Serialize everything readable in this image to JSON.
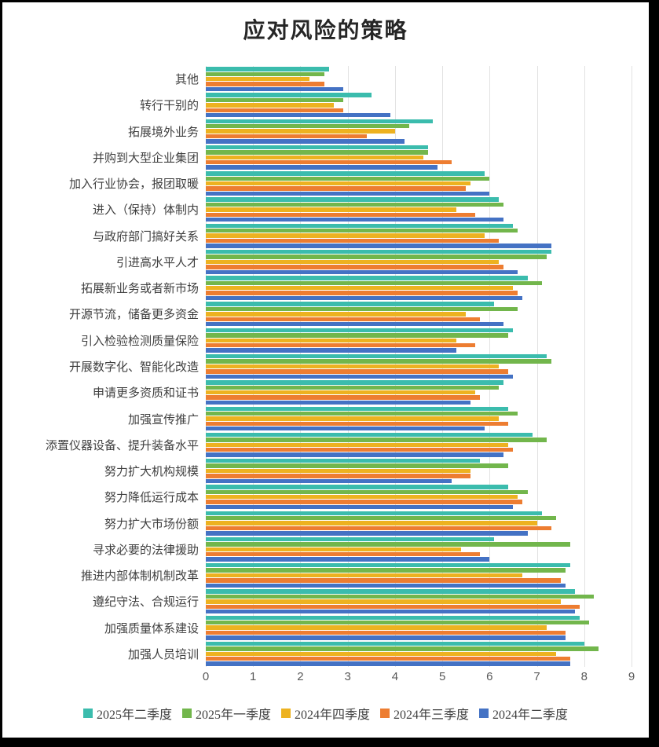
{
  "chart_data": {
    "type": "bar",
    "orientation": "horizontal",
    "title": "应对风险的策略",
    "xlabel": "",
    "ylabel": "",
    "xlim": [
      0,
      9
    ],
    "x_ticks": [
      0,
      1,
      2,
      3,
      4,
      5,
      6,
      7,
      8,
      9
    ],
    "grid": true,
    "legend_position": "bottom",
    "gridline_color": "#e2e2e2",
    "categories": [
      "其他",
      "转行干别的",
      "拓展境外业务",
      "并购到大型企业集团",
      "加入行业协会，报团取暖",
      "进入（保持）体制内",
      "与政府部门搞好关系",
      "引进高水平人才",
      "拓展新业务或者新市场",
      "开源节流，储备更多资金",
      "引入检验检测质量保险",
      "开展数字化、智能化改造",
      "申请更多资质和证书",
      "加强宣传推广",
      "添置仪器设备、提升装备水平",
      "努力扩大机构规模",
      "努力降低运行成本",
      "努力扩大市场份额",
      "寻求必要的法律援助",
      "推进内部体制机制改革",
      "遵纪守法、合规运行",
      "加强质量体系建设",
      "加强人员培训"
    ],
    "series": [
      {
        "name": "2025年二季度",
        "color": "#3bbcad",
        "values": [
          2.6,
          3.5,
          4.8,
          4.7,
          5.9,
          6.2,
          6.5,
          7.3,
          6.8,
          6.1,
          6.5,
          7.2,
          6.3,
          6.4,
          6.9,
          5.8,
          6.4,
          7.1,
          6.1,
          7.7,
          7.8,
          7.9,
          8.0
        ]
      },
      {
        "name": "2025年一季度",
        "color": "#72b64c",
        "values": [
          2.5,
          2.9,
          4.3,
          4.7,
          6.0,
          6.3,
          6.6,
          7.2,
          7.1,
          6.6,
          6.4,
          7.3,
          6.2,
          6.6,
          7.2,
          6.4,
          6.8,
          7.4,
          7.7,
          7.6,
          8.2,
          8.1,
          8.3
        ]
      },
      {
        "name": "2024年四季度",
        "color": "#edb220",
        "values": [
          2.2,
          2.7,
          4.0,
          4.6,
          5.6,
          5.3,
          5.9,
          6.2,
          6.5,
          5.5,
          5.3,
          6.2,
          5.7,
          6.2,
          6.4,
          5.6,
          6.6,
          7.0,
          5.4,
          6.7,
          7.5,
          7.2,
          7.4
        ]
      },
      {
        "name": "2024年三季度",
        "color": "#ed7d31",
        "values": [
          2.5,
          2.9,
          3.4,
          5.2,
          5.5,
          5.7,
          6.2,
          6.3,
          6.6,
          5.8,
          5.7,
          6.4,
          5.8,
          6.4,
          6.5,
          5.6,
          6.7,
          7.3,
          5.8,
          7.5,
          7.9,
          7.6,
          7.7
        ]
      },
      {
        "name": "2024年二季度",
        "color": "#4472c4",
        "values": [
          2.9,
          3.9,
          4.2,
          4.9,
          6.0,
          6.3,
          7.3,
          6.6,
          6.7,
          6.3,
          5.3,
          6.5,
          5.6,
          5.9,
          6.3,
          5.2,
          6.5,
          6.8,
          6.0,
          7.6,
          7.8,
          7.6,
          7.7
        ]
      }
    ]
  }
}
